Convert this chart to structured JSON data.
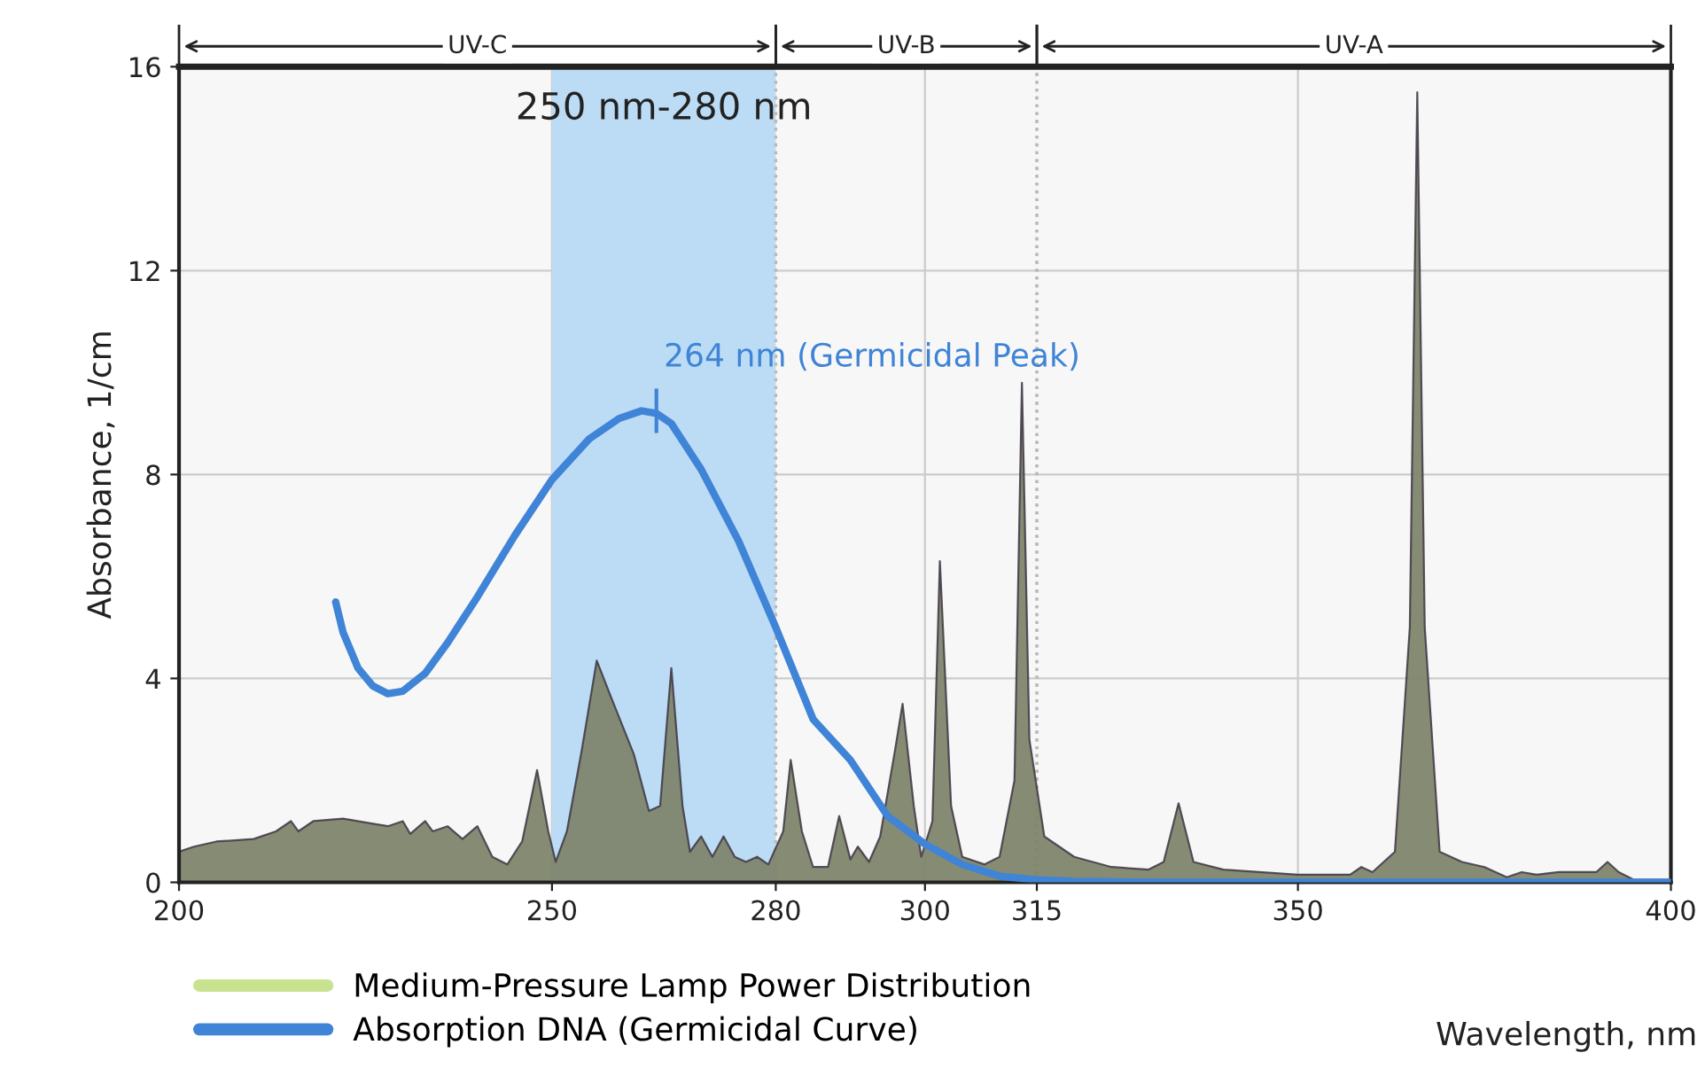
{
  "chart_data": {
    "type": "area",
    "xlabel": "Wavelength, nm",
    "ylabel": "Absorbance, 1/cm",
    "xlim": [
      200,
      400
    ],
    "ylim": [
      0,
      16
    ],
    "xticks": [
      200,
      250,
      280,
      300,
      315,
      350,
      400
    ],
    "yticks": [
      0,
      4,
      8,
      12,
      16
    ],
    "grid": true,
    "legend": "bottom left",
    "series": [
      {
        "name": "Medium-Pressure Lamp Power Distribution",
        "type": "area",
        "color": "#c8e28f",
        "x": [
          200,
          202,
          205,
          210,
          213,
          215,
          216,
          218,
          222,
          226,
          228,
          230,
          231,
          233,
          234,
          236,
          238,
          240,
          242,
          244,
          246,
          248,
          249.5,
          250.5,
          252,
          254,
          256,
          258,
          261,
          263,
          264.5,
          266,
          267.5,
          268.5,
          270,
          271.5,
          273,
          274.5,
          276,
          277.5,
          279,
          281,
          282,
          283.5,
          285,
          287,
          288.5,
          290,
          291,
          292.5,
          294,
          296,
          297,
          298.5,
          299.5,
          301,
          302,
          303.5,
          305,
          308,
          310,
          312,
          313,
          314,
          316,
          320,
          325,
          330,
          332,
          334,
          336,
          340,
          350,
          357,
          358.5,
          360,
          363,
          365,
          366,
          367,
          369,
          372,
          375,
          378,
          380,
          382,
          385,
          390,
          391.5,
          393,
          395,
          400
        ],
        "values": [
          0.6,
          0.7,
          0.8,
          0.85,
          1.0,
          1.2,
          1.0,
          1.2,
          1.25,
          1.15,
          1.1,
          1.2,
          0.95,
          1.2,
          1.0,
          1.1,
          0.85,
          1.1,
          0.5,
          0.35,
          0.8,
          2.2,
          1.0,
          0.4,
          1.0,
          2.6,
          4.35,
          3.6,
          2.5,
          1.4,
          1.5,
          4.2,
          1.5,
          0.6,
          0.9,
          0.5,
          0.9,
          0.5,
          0.4,
          0.5,
          0.35,
          1.0,
          2.4,
          1.0,
          0.3,
          0.3,
          1.3,
          0.45,
          0.7,
          0.4,
          0.9,
          2.6,
          3.5,
          1.5,
          0.5,
          1.2,
          6.3,
          1.5,
          0.5,
          0.35,
          0.5,
          2.0,
          9.8,
          2.8,
          0.9,
          0.5,
          0.3,
          0.25,
          0.4,
          1.55,
          0.4,
          0.25,
          0.15,
          0.15,
          0.3,
          0.2,
          0.6,
          5.0,
          15.5,
          5.0,
          0.6,
          0.4,
          0.3,
          0.1,
          0.2,
          0.15,
          0.2,
          0.2,
          0.4,
          0.2,
          0.05,
          0.05
        ]
      },
      {
        "name": "Absorption DNA (Germicidal Curve)",
        "type": "line",
        "color": "#3f84d6",
        "x": [
          221,
          222,
          224,
          226,
          228,
          230,
          233,
          236,
          240,
          245,
          250,
          255,
          259,
          262,
          264,
          266,
          270,
          275,
          280,
          285,
          290,
          295,
          300,
          305,
          310,
          315,
          320,
          330,
          350,
          400
        ],
        "values": [
          5.5,
          4.9,
          4.2,
          3.85,
          3.7,
          3.75,
          4.1,
          4.7,
          5.6,
          6.8,
          7.9,
          8.7,
          9.1,
          9.25,
          9.2,
          9.0,
          8.1,
          6.7,
          5.0,
          3.2,
          2.4,
          1.3,
          0.75,
          0.35,
          0.12,
          0.05,
          0.02,
          0.0,
          0.0,
          0.0
        ]
      }
    ],
    "bands": [
      {
        "axis": "x",
        "from": 250,
        "to": 280,
        "label": "250 nm-280 nm",
        "color": "#bcdcf5"
      },
      {
        "axis": "x",
        "from": 200,
        "to": 280,
        "label": "UV-C",
        "color": "#f7f7f7"
      },
      {
        "axis": "x",
        "from": 280,
        "to": 315,
        "label": "UV-B",
        "color": "#f7f7f7"
      },
      {
        "axis": "x",
        "from": 315,
        "to": 400,
        "label": "UV-A",
        "color": "#f7f7f7"
      }
    ],
    "annotations": [
      {
        "text": "264 nm (Germicidal Peak)",
        "x": 264,
        "y": 9.25
      }
    ]
  }
}
